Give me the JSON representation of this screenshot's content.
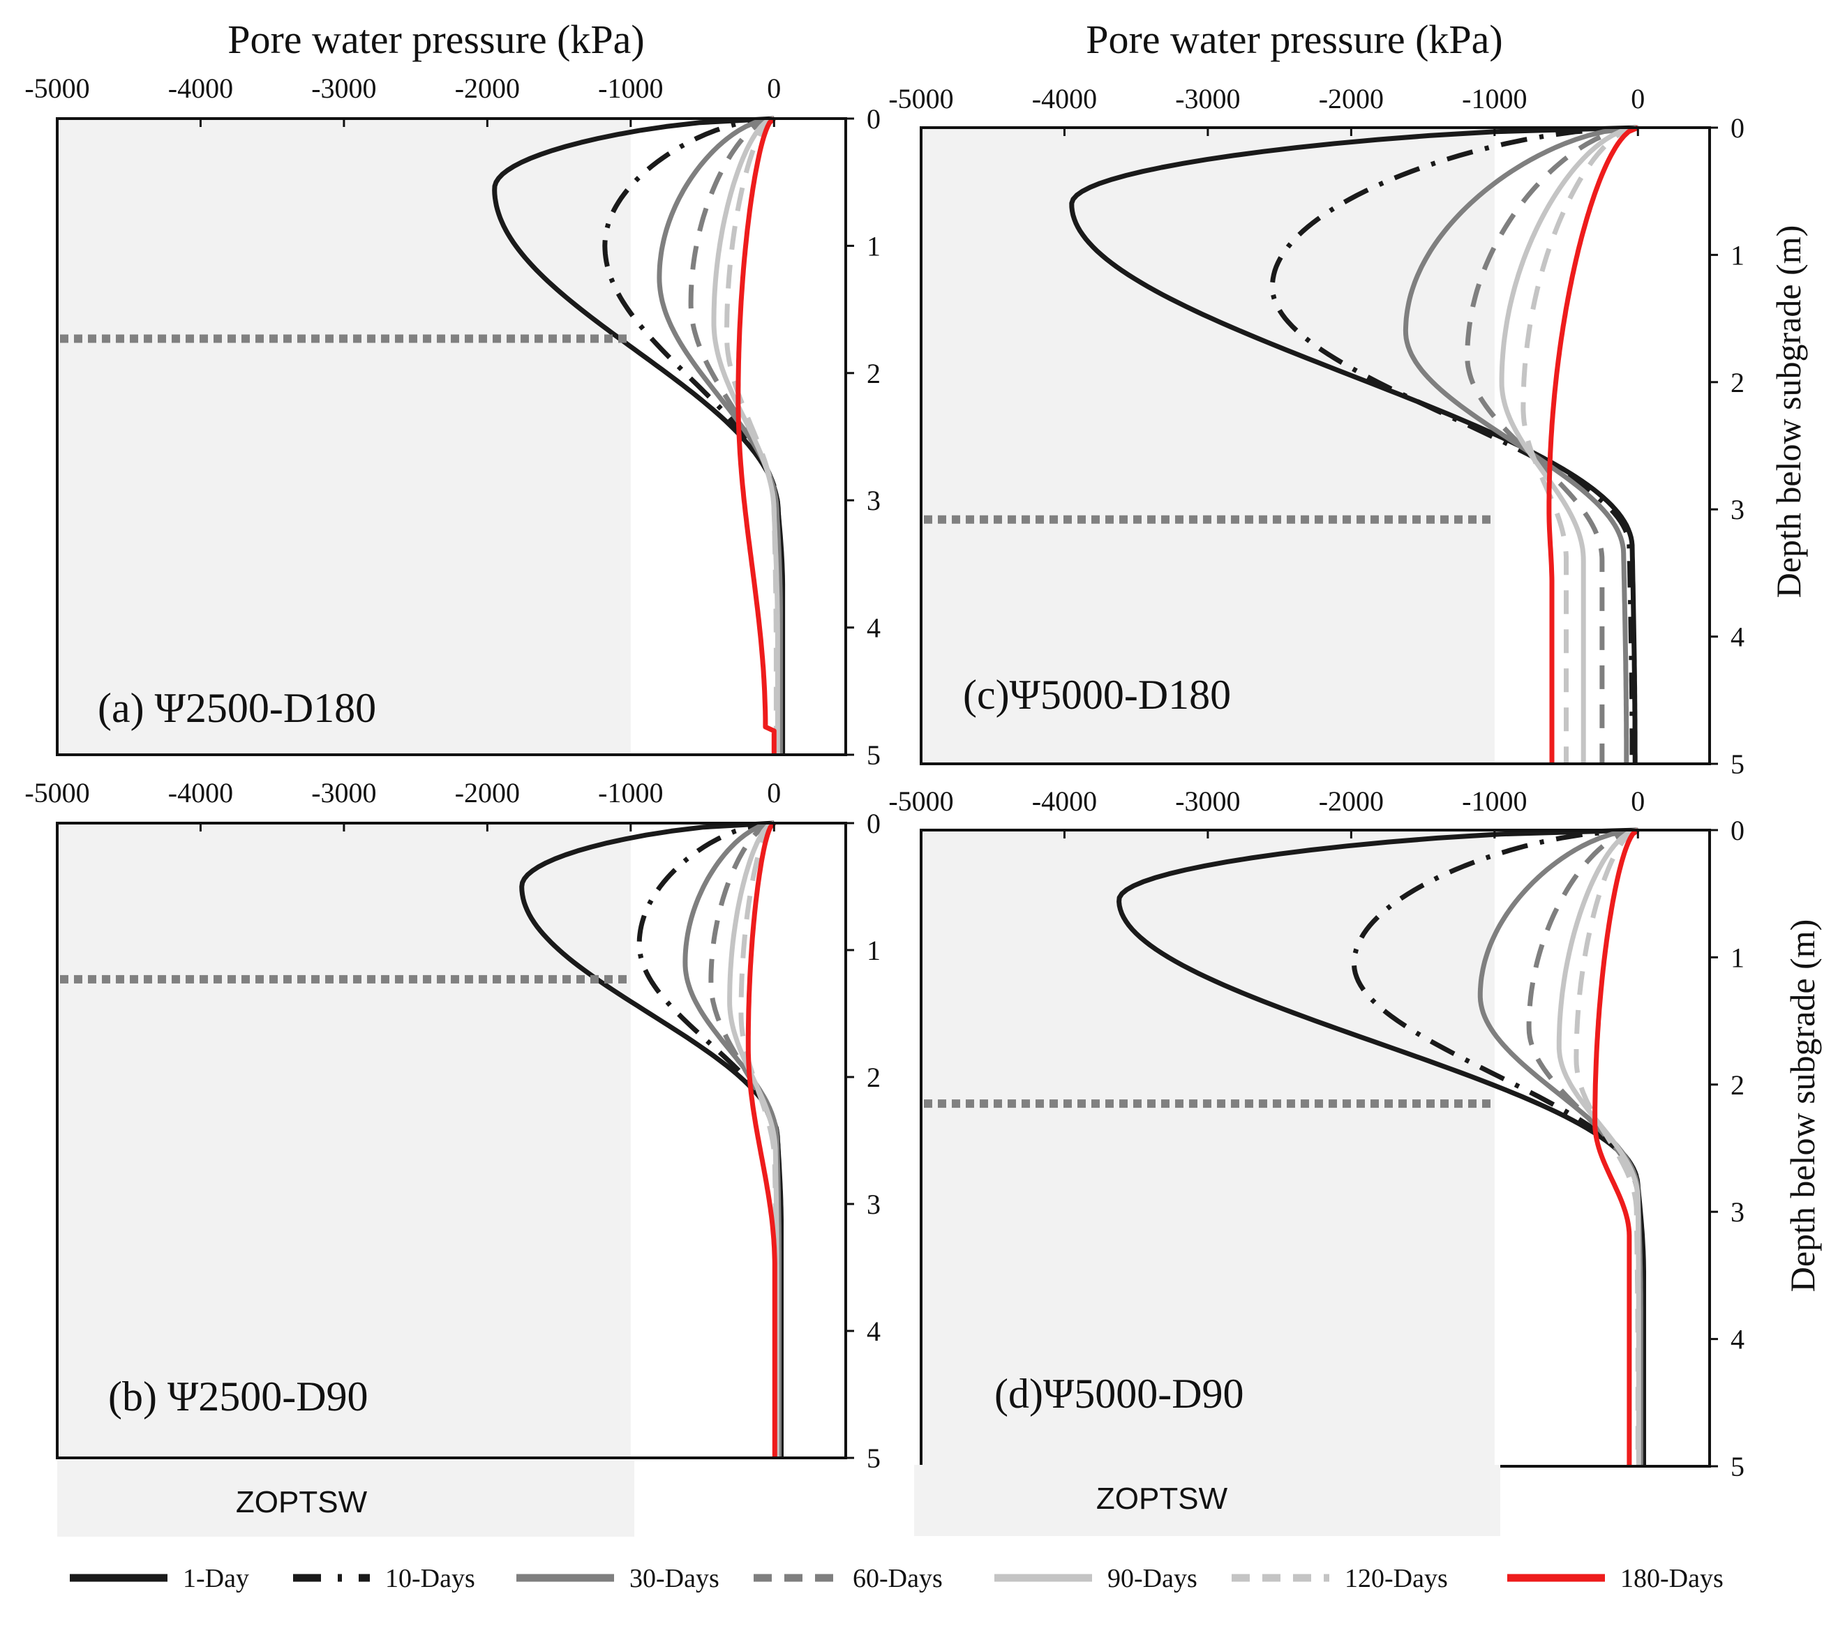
{
  "colors": {
    "day1": "#1a1a1a",
    "day10": "#1a1a1a",
    "day30": "#7f7f7f",
    "day60": "#7f7f7f",
    "day90": "#c4c4c4",
    "day120": "#c4c4c4",
    "day180": "#ee1c1c",
    "zone_fill": "#f2f2f2",
    "zone_line": "#808080"
  },
  "legend": [
    {
      "key": "day1",
      "label": "1-Day",
      "style": "solid",
      "color": "#1a1a1a"
    },
    {
      "key": "day10",
      "label": "10-Days",
      "style": "dashdot",
      "color": "#1a1a1a"
    },
    {
      "key": "day30",
      "label": "30-Days",
      "style": "solid",
      "color": "#7f7f7f"
    },
    {
      "key": "day60",
      "label": "60-Days",
      "style": "dashed",
      "color": "#7f7f7f"
    },
    {
      "key": "day90",
      "label": "90-Days",
      "style": "solid",
      "color": "#c4c4c4"
    },
    {
      "key": "day120",
      "label": "120-Days",
      "style": "dashed",
      "color": "#c4c4c4"
    },
    {
      "key": "day180",
      "label": "180-Days",
      "style": "solid",
      "color": "#ee1c1c"
    }
  ],
  "zone_label": "ZOPTSW",
  "chart_data": [
    {
      "type": "line",
      "id": "a",
      "label": "(a) Ψ2500-D180",
      "title": "Pore water pressure (kPa)",
      "xlabel": "Pore water pressure (kPa)",
      "ylabel": "",
      "xlim": [
        -5000,
        500
      ],
      "ylim": [
        0,
        5
      ],
      "xticks": [
        -5000,
        -4000,
        -3000,
        -2000,
        -1000,
        0
      ],
      "yticks": [
        0,
        1,
        2,
        3,
        4,
        5
      ],
      "zoptsw": {
        "x_from": -5000,
        "x_to": -1000,
        "boundary_depth": 1.73
      },
      "series": [
        {
          "key": "day1",
          "name": "1-Day",
          "min": -1950,
          "dmin": 0.55,
          "cross": 3.1,
          "deep": 30,
          "peak": 60,
          "dpeak": 3.7,
          "base": 0
        },
        {
          "key": "day10",
          "name": "10-Days",
          "min": -1180,
          "dmin": 1.0,
          "cross": 3.1,
          "deep": 30,
          "peak": 55,
          "dpeak": 3.8,
          "base": 0
        },
        {
          "key": "day30",
          "name": "30-Days",
          "min": -800,
          "dmin": 1.25,
          "cross": 3.1,
          "deep": 20,
          "peak": 45,
          "dpeak": 3.9,
          "base": 0
        },
        {
          "key": "day60",
          "name": "60-Days",
          "min": -580,
          "dmin": 1.45,
          "cross": 3.1,
          "deep": 10,
          "peak": 35,
          "dpeak": 4.0,
          "base": 0
        },
        {
          "key": "day90",
          "name": "90-Days",
          "min": -420,
          "dmin": 1.6,
          "cross": 3.1,
          "deep": 0,
          "peak": 25,
          "dpeak": 4.1,
          "base": 0
        },
        {
          "key": "day120",
          "name": "120-Days",
          "min": -330,
          "dmin": 1.7,
          "cross": 3.1,
          "deep": 0,
          "peak": 15,
          "dpeak": 4.2,
          "base": 0
        },
        {
          "key": "day180",
          "name": "180-Days",
          "min": -250,
          "dmin": 2.2,
          "cross": 4.8,
          "deep": -60,
          "peak": 0,
          "dpeak": 4.8,
          "base": 0
        }
      ]
    },
    {
      "type": "line",
      "id": "b",
      "label": "(b) Ψ2500-D90",
      "title": "",
      "xlabel": "",
      "ylabel": "",
      "xlim": [
        -5000,
        500
      ],
      "ylim": [
        0,
        5
      ],
      "xticks": [
        -5000,
        -4000,
        -3000,
        -2000,
        -1000,
        0
      ],
      "yticks": [
        0,
        1,
        2,
        3,
        4,
        5
      ],
      "zoptsw": {
        "x_from": -5000,
        "x_to": -1000,
        "boundary_depth": 1.23
      },
      "series": [
        {
          "key": "day1",
          "name": "1-Day",
          "min": -1760,
          "dmin": 0.5,
          "cross": 2.5,
          "deep": 25,
          "peak": 50,
          "dpeak": 3.2,
          "base": 0
        },
        {
          "key": "day10",
          "name": "10-Days",
          "min": -940,
          "dmin": 0.95,
          "cross": 2.5,
          "deep": 25,
          "peak": 45,
          "dpeak": 3.3,
          "base": 0
        },
        {
          "key": "day30",
          "name": "30-Days",
          "min": -620,
          "dmin": 1.1,
          "cross": 2.5,
          "deep": 20,
          "peak": 35,
          "dpeak": 3.4,
          "base": 0
        },
        {
          "key": "day60",
          "name": "60-Days",
          "min": -440,
          "dmin": 1.25,
          "cross": 2.6,
          "deep": 15,
          "peak": 25,
          "dpeak": 3.5,
          "base": 0
        },
        {
          "key": "day90",
          "name": "90-Days",
          "min": -310,
          "dmin": 1.4,
          "cross": 2.6,
          "deep": 10,
          "peak": 20,
          "dpeak": 3.6,
          "base": 0
        },
        {
          "key": "day120",
          "name": "120-Days",
          "min": -230,
          "dmin": 1.5,
          "cross": 2.7,
          "deep": 5,
          "peak": 15,
          "dpeak": 3.7,
          "base": 0
        },
        {
          "key": "day180",
          "name": "180-Days",
          "min": -180,
          "dmin": 1.75,
          "cross": 3.5,
          "deep": 5,
          "peak": 5,
          "dpeak": 4.5,
          "base": 0
        }
      ]
    },
    {
      "type": "line",
      "id": "c",
      "label": "(c)Ψ5000-D180",
      "title": "Pore water pressure (kPa)",
      "xlabel": "Pore water pressure (kPa)",
      "ylabel": "Depth below subgrade (m)",
      "xlim": [
        -5000,
        500
      ],
      "ylim": [
        0,
        5
      ],
      "xticks": [
        -5000,
        -4000,
        -3000,
        -2000,
        -1000,
        0
      ],
      "yticks": [
        0,
        1,
        2,
        3,
        4,
        5
      ],
      "zoptsw": {
        "x_from": -5000,
        "x_to": -1000,
        "boundary_depth": 3.08
      },
      "series": [
        {
          "key": "day1",
          "name": "1-Day",
          "min": -3950,
          "dmin": 0.6,
          "cross": 3.3,
          "deep": -40,
          "peak": -20,
          "dpeak": 5.0,
          "base": 0
        },
        {
          "key": "day10",
          "name": "10-Days",
          "min": -2550,
          "dmin": 1.25,
          "cross": 3.3,
          "deep": -60,
          "peak": -40,
          "dpeak": 5.0,
          "base": 0
        },
        {
          "key": "day30",
          "name": "30-Days",
          "min": -1620,
          "dmin": 1.6,
          "cross": 3.35,
          "deep": -100,
          "peak": -80,
          "dpeak": 5.0,
          "base": 0
        },
        {
          "key": "day60",
          "name": "60-Days",
          "min": -1190,
          "dmin": 1.8,
          "cross": 3.4,
          "deep": -250,
          "peak": -250,
          "dpeak": 5.0,
          "base": 0
        },
        {
          "key": "day90",
          "name": "90-Days",
          "min": -950,
          "dmin": 2.0,
          "cross": 3.4,
          "deep": -380,
          "peak": -380,
          "dpeak": 5.0,
          "base": 0
        },
        {
          "key": "day120",
          "name": "120-Days",
          "min": -800,
          "dmin": 2.2,
          "cross": 3.4,
          "deep": -500,
          "peak": -500,
          "dpeak": 5.0,
          "base": 0
        },
        {
          "key": "day180",
          "name": "180-Days",
          "min": -620,
          "dmin": 3.0,
          "cross": 3.6,
          "deep": -600,
          "peak": -600,
          "dpeak": 5.0,
          "base": 0
        }
      ]
    },
    {
      "type": "line",
      "id": "d",
      "label": "(d)Ψ5000-D90",
      "title": "",
      "xlabel": "",
      "ylabel": "Depth below subgrade (m)",
      "xlim": [
        -5000,
        500
      ],
      "ylim": [
        0,
        5
      ],
      "xticks": [
        -5000,
        -4000,
        -3000,
        -2000,
        -1000,
        0
      ],
      "yticks": [
        0,
        1,
        2,
        3,
        4,
        5
      ],
      "zoptsw": {
        "x_from": -5000,
        "x_to": -1000,
        "boundary_depth": 2.15
      },
      "series": [
        {
          "key": "day1",
          "name": "1-Day",
          "min": -3620,
          "dmin": 0.55,
          "cross": 2.8,
          "deep": 0,
          "peak": 40,
          "dpeak": 3.5,
          "base": 0
        },
        {
          "key": "day10",
          "name": "10-Days",
          "min": -1980,
          "dmin": 1.05,
          "cross": 2.8,
          "deep": 0,
          "peak": 30,
          "dpeak": 3.6,
          "base": 0
        },
        {
          "key": "day30",
          "name": "30-Days",
          "min": -1100,
          "dmin": 1.3,
          "cross": 2.85,
          "deep": 0,
          "peak": 20,
          "dpeak": 3.8,
          "base": 0
        },
        {
          "key": "day60",
          "name": "60-Days",
          "min": -760,
          "dmin": 1.55,
          "cross": 2.9,
          "deep": 0,
          "peak": 10,
          "dpeak": 3.9,
          "base": 0
        },
        {
          "key": "day90",
          "name": "90-Days",
          "min": -550,
          "dmin": 1.7,
          "cross": 2.9,
          "deep": 0,
          "peak": 5,
          "dpeak": 4.0,
          "base": 0
        },
        {
          "key": "day120",
          "name": "120-Days",
          "min": -430,
          "dmin": 1.8,
          "cross": 3.0,
          "deep": -10,
          "peak": 0,
          "dpeak": 4.2,
          "base": 0
        },
        {
          "key": "day180",
          "name": "180-Days",
          "min": -300,
          "dmin": 2.3,
          "cross": 3.2,
          "deep": -60,
          "peak": -60,
          "dpeak": 5.0,
          "base": 0
        }
      ]
    }
  ]
}
